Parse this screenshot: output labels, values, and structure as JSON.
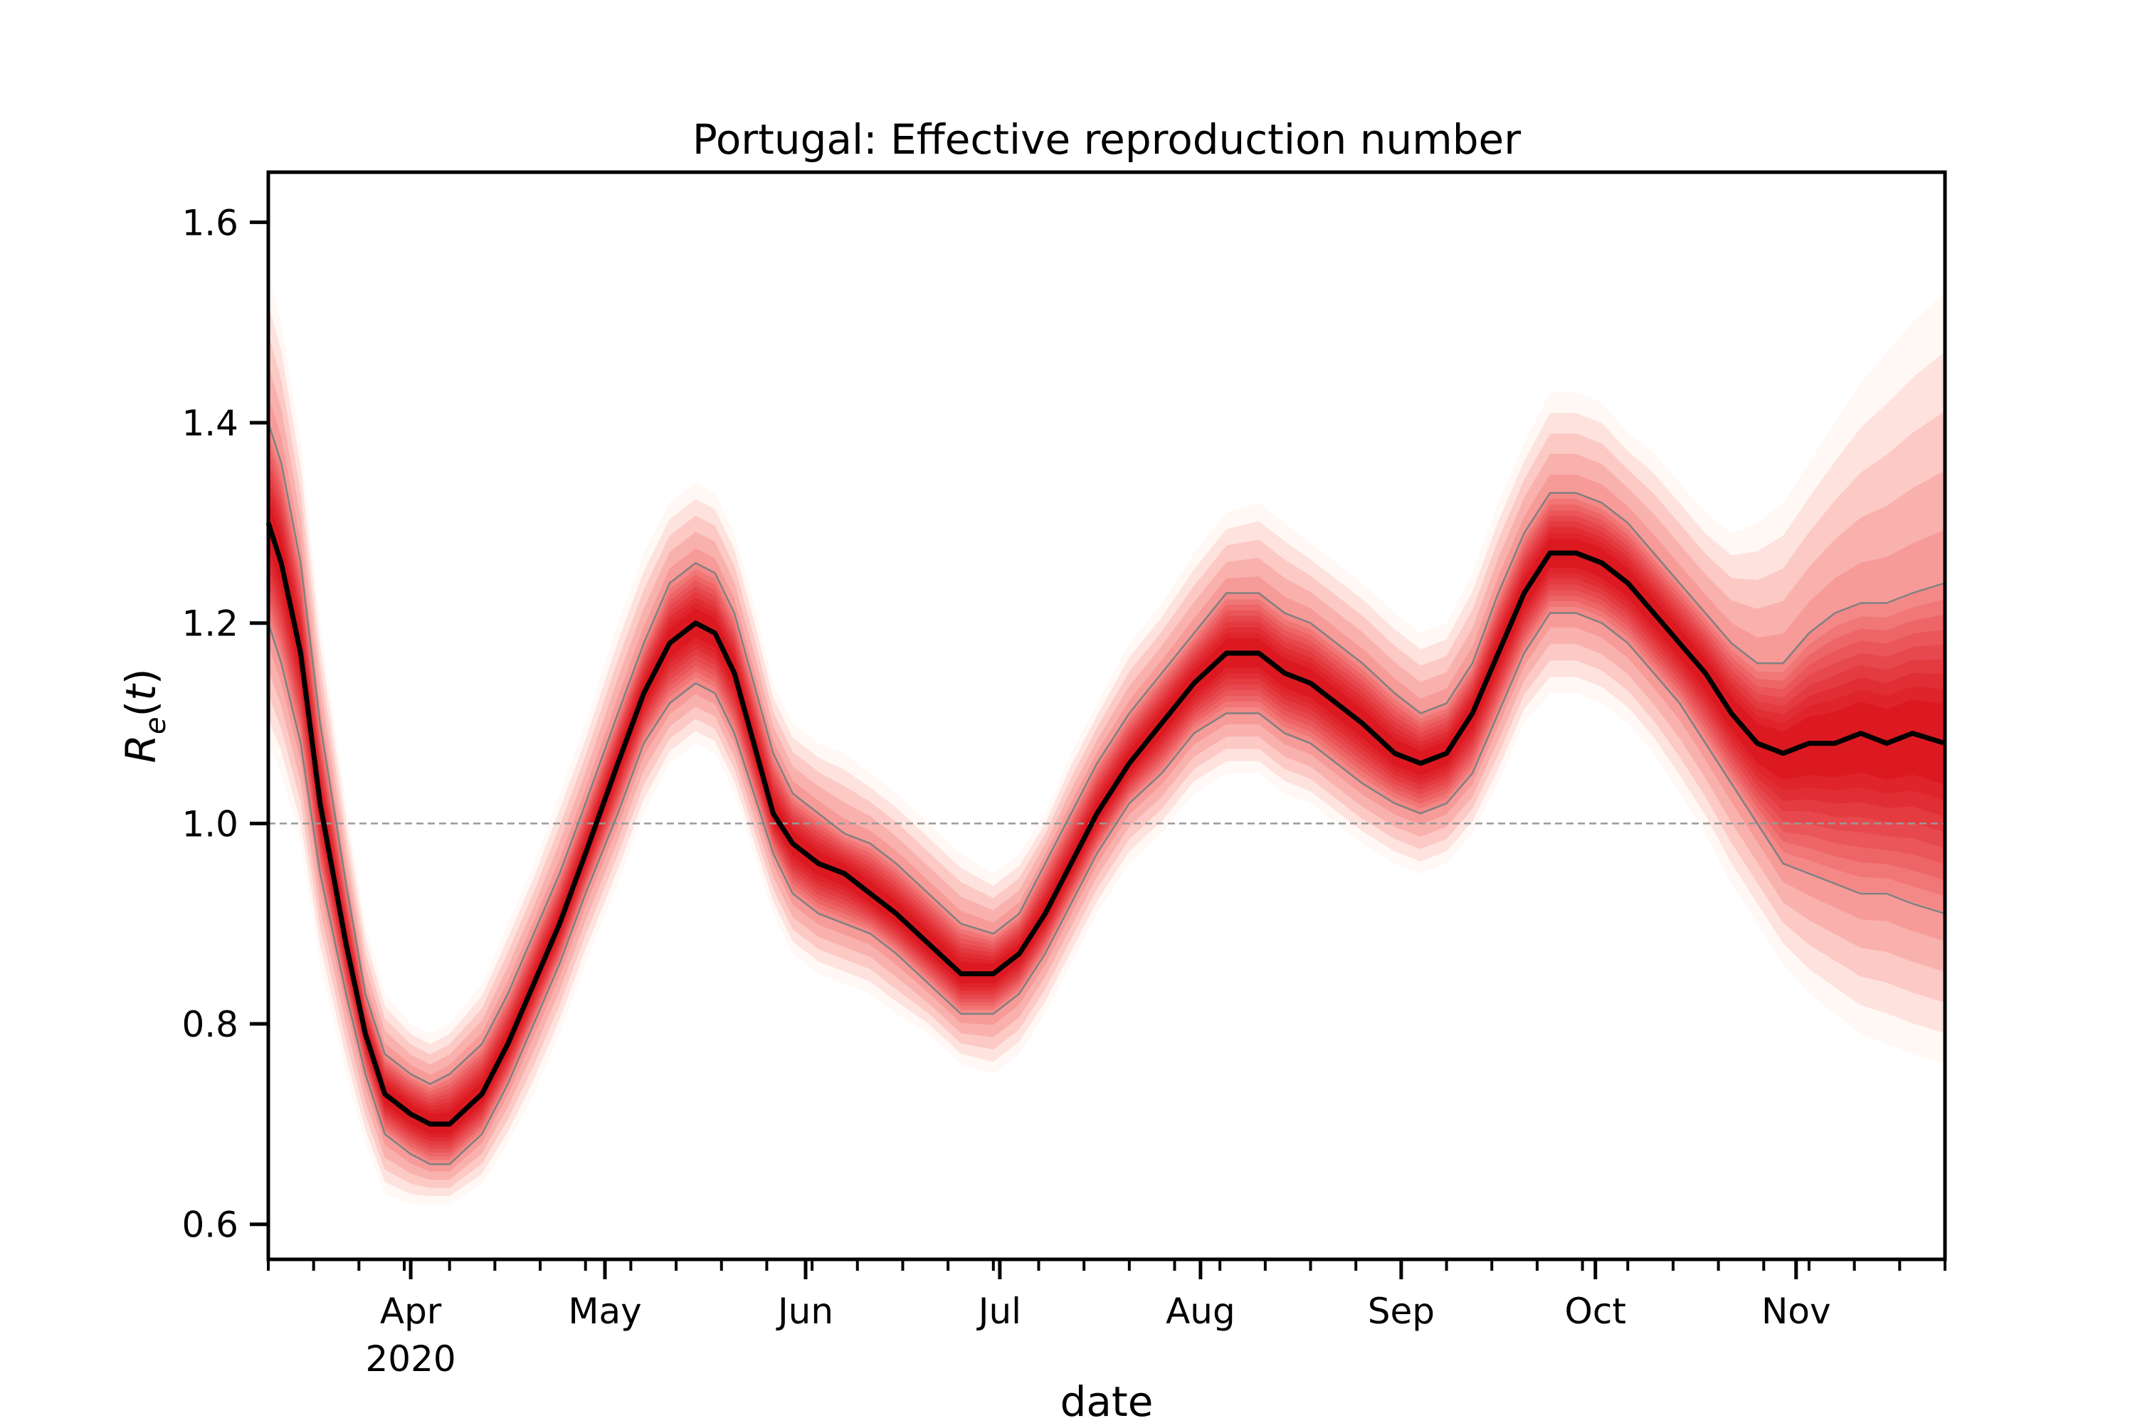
{
  "chart_data": {
    "type": "line",
    "title": "Portugal: Effective reproduction number",
    "xlabel": "date",
    "ylabel_base": "R",
    "ylabel_sub": "e",
    "ylabel_arg": "t",
    "x_start": "2020-03-10",
    "x_end": "2020-11-24",
    "ylim": [
      0.565,
      1.65
    ],
    "yticks": [
      0.6,
      0.8,
      1.0,
      1.2,
      1.4,
      1.6
    ],
    "ytick_labels": [
      "0.6",
      "0.8",
      "1.0",
      "1.2",
      "1.4",
      "1.6"
    ],
    "xticks": [
      {
        "date": "2020-04-01",
        "label": "Apr",
        "sublabel": "2020"
      },
      {
        "date": "2020-05-01",
        "label": "May"
      },
      {
        "date": "2020-06-01",
        "label": "Jun"
      },
      {
        "date": "2020-07-01",
        "label": "Jul"
      },
      {
        "date": "2020-08-01",
        "label": "Aug"
      },
      {
        "date": "2020-09-01",
        "label": "Sep"
      },
      {
        "date": "2020-10-01",
        "label": "Oct"
      },
      {
        "date": "2020-11-01",
        "label": "Nov"
      }
    ],
    "reference_line": 1.0,
    "colors": {
      "median": "#000000",
      "band": "#cb181d",
      "bound": "#808080",
      "reference": "#999999"
    },
    "series": [
      {
        "x": [
          "2020-03-10",
          "2020-03-12",
          "2020-03-15",
          "2020-03-18",
          "2020-03-22",
          "2020-03-25",
          "2020-03-28",
          "2020-04-01",
          "2020-04-04",
          "2020-04-07",
          "2020-04-12",
          "2020-04-16",
          "2020-04-20",
          "2020-04-24",
          "2020-04-28",
          "2020-05-03",
          "2020-05-07",
          "2020-05-11",
          "2020-05-15",
          "2020-05-18",
          "2020-05-21",
          "2020-05-24",
          "2020-05-27",
          "2020-05-30",
          "2020-06-03",
          "2020-06-07",
          "2020-06-11",
          "2020-06-15",
          "2020-06-20",
          "2020-06-25",
          "2020-06-30",
          "2020-07-04",
          "2020-07-08",
          "2020-07-12",
          "2020-07-16",
          "2020-07-21",
          "2020-07-26",
          "2020-07-31",
          "2020-08-05",
          "2020-08-10",
          "2020-08-14",
          "2020-08-18",
          "2020-08-22",
          "2020-08-26",
          "2020-08-31",
          "2020-09-04",
          "2020-09-08",
          "2020-09-12",
          "2020-09-16",
          "2020-09-20",
          "2020-09-24",
          "2020-09-28",
          "2020-10-02",
          "2020-10-06",
          "2020-10-10",
          "2020-10-14",
          "2020-10-18",
          "2020-10-22",
          "2020-10-26",
          "2020-10-30",
          "2020-11-03",
          "2020-11-07",
          "2020-11-11",
          "2020-11-15",
          "2020-11-19",
          "2020-11-24"
        ],
        "median": [
          1.3,
          1.26,
          1.17,
          1.02,
          0.88,
          0.79,
          0.73,
          0.71,
          0.7,
          0.7,
          0.73,
          0.78,
          0.84,
          0.9,
          0.97,
          1.06,
          1.13,
          1.18,
          1.2,
          1.19,
          1.15,
          1.08,
          1.01,
          0.98,
          0.96,
          0.95,
          0.93,
          0.91,
          0.88,
          0.85,
          0.85,
          0.87,
          0.91,
          0.96,
          1.01,
          1.06,
          1.1,
          1.14,
          1.17,
          1.17,
          1.15,
          1.14,
          1.12,
          1.1,
          1.07,
          1.06,
          1.07,
          1.11,
          1.17,
          1.23,
          1.27,
          1.27,
          1.26,
          1.24,
          1.21,
          1.18,
          1.15,
          1.11,
          1.08,
          1.07,
          1.08,
          1.08,
          1.09,
          1.08,
          1.09,
          1.08
        ],
        "lower": [
          1.2,
          1.16,
          1.08,
          0.95,
          0.83,
          0.75,
          0.69,
          0.67,
          0.66,
          0.66,
          0.69,
          0.74,
          0.8,
          0.86,
          0.93,
          1.01,
          1.08,
          1.12,
          1.14,
          1.13,
          1.09,
          1.03,
          0.97,
          0.93,
          0.91,
          0.9,
          0.89,
          0.87,
          0.84,
          0.81,
          0.81,
          0.83,
          0.87,
          0.92,
          0.97,
          1.02,
          1.05,
          1.09,
          1.11,
          1.11,
          1.09,
          1.08,
          1.06,
          1.04,
          1.02,
          1.01,
          1.02,
          1.05,
          1.11,
          1.17,
          1.21,
          1.21,
          1.2,
          1.18,
          1.15,
          1.12,
          1.08,
          1.04,
          1.0,
          0.96,
          0.95,
          0.94,
          0.93,
          0.93,
          0.92,
          0.91
        ],
        "upper": [
          1.4,
          1.36,
          1.26,
          1.1,
          0.94,
          0.83,
          0.77,
          0.75,
          0.74,
          0.75,
          0.78,
          0.83,
          0.89,
          0.95,
          1.02,
          1.11,
          1.18,
          1.24,
          1.26,
          1.25,
          1.21,
          1.14,
          1.07,
          1.03,
          1.01,
          0.99,
          0.98,
          0.96,
          0.93,
          0.9,
          0.89,
          0.91,
          0.96,
          1.01,
          1.06,
          1.11,
          1.15,
          1.19,
          1.23,
          1.23,
          1.21,
          1.2,
          1.18,
          1.16,
          1.13,
          1.11,
          1.12,
          1.16,
          1.23,
          1.29,
          1.33,
          1.33,
          1.32,
          1.3,
          1.27,
          1.24,
          1.21,
          1.18,
          1.16,
          1.16,
          1.19,
          1.21,
          1.22,
          1.22,
          1.23,
          1.24
        ],
        "outer_lower": [
          1.08,
          1.05,
          0.98,
          0.86,
          0.75,
          0.68,
          0.63,
          0.62,
          0.62,
          0.62,
          0.64,
          0.68,
          0.73,
          0.79,
          0.86,
          0.94,
          1.01,
          1.06,
          1.08,
          1.07,
          1.03,
          0.97,
          0.91,
          0.87,
          0.85,
          0.84,
          0.83,
          0.81,
          0.79,
          0.76,
          0.75,
          0.77,
          0.81,
          0.86,
          0.91,
          0.96,
          0.99,
          1.03,
          1.05,
          1.05,
          1.03,
          1.02,
          1.0,
          0.98,
          0.96,
          0.95,
          0.96,
          0.99,
          1.04,
          1.1,
          1.13,
          1.13,
          1.12,
          1.1,
          1.07,
          1.03,
          0.99,
          0.94,
          0.9,
          0.86,
          0.83,
          0.81,
          0.79,
          0.78,
          0.77,
          0.76
        ],
        "outer_upper": [
          1.55,
          1.5,
          1.38,
          1.2,
          1.02,
          0.9,
          0.83,
          0.8,
          0.79,
          0.8,
          0.84,
          0.9,
          0.96,
          1.03,
          1.1,
          1.2,
          1.27,
          1.32,
          1.34,
          1.33,
          1.29,
          1.22,
          1.14,
          1.1,
          1.08,
          1.07,
          1.05,
          1.03,
          1.0,
          0.97,
          0.95,
          0.97,
          1.01,
          1.07,
          1.12,
          1.18,
          1.22,
          1.27,
          1.31,
          1.32,
          1.3,
          1.28,
          1.26,
          1.24,
          1.21,
          1.19,
          1.2,
          1.25,
          1.32,
          1.38,
          1.43,
          1.43,
          1.42,
          1.39,
          1.37,
          1.34,
          1.31,
          1.29,
          1.3,
          1.32,
          1.36,
          1.4,
          1.44,
          1.47,
          1.5,
          1.53
        ]
      }
    ]
  }
}
